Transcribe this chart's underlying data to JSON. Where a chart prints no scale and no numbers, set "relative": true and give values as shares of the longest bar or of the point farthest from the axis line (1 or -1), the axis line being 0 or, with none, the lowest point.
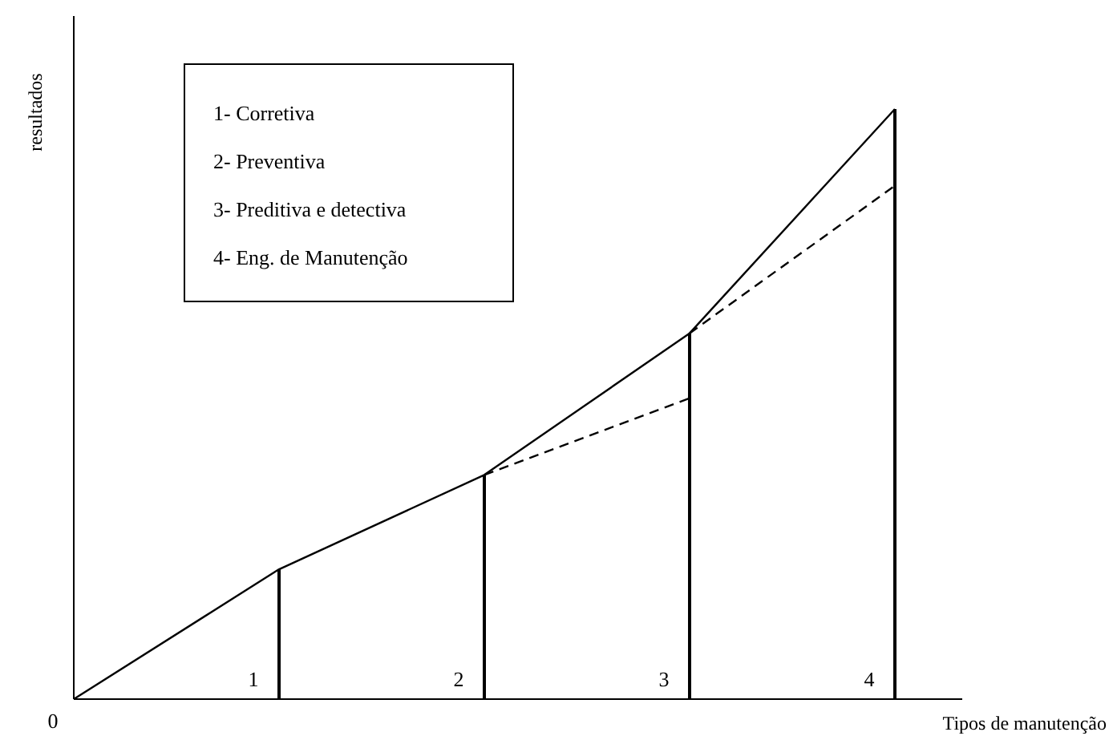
{
  "chart_data": {
    "type": "line",
    "relative": true,
    "ylabel": "resultados",
    "xlabel": "Tipos de manutenção",
    "categories": [
      null,
      "1",
      "2",
      "3",
      "4"
    ],
    "series": [
      {
        "color": "#000000",
        "line_style": "solid",
        "values": [
          0,
          0.22,
          0.38,
          0.62,
          1
        ]
      },
      {
        "type": "bar",
        "color": "#000000",
        "values": [
          null,
          0.22,
          0.38,
          0.62,
          1
        ]
      },
      {
        "color": "#000000",
        "line_style": "dashed",
        "values": [
          null,
          null,
          0.38,
          0.51,
          null
        ]
      },
      {
        "color": "#000000",
        "line_style": "dashed",
        "values": [
          null,
          null,
          null,
          0.62,
          0.87
        ]
      }
    ],
    "annotations": [
      "0",
      "1- Corretiva",
      "2- Preventiva",
      "3- Preditiva e detectiva",
      "4- Eng. de Manutenção"
    ],
    "marker": "none"
  }
}
